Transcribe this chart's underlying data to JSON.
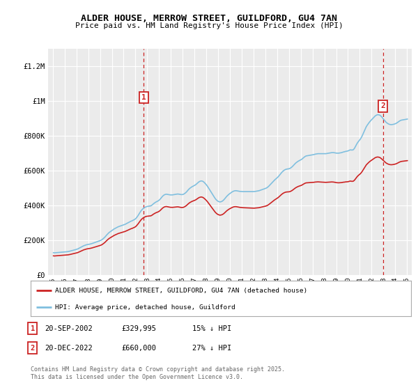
{
  "title": "ALDER HOUSE, MERROW STREET, GUILDFORD, GU4 7AN",
  "subtitle": "Price paid vs. HM Land Registry's House Price Index (HPI)",
  "ylabel_ticks": [
    "£0",
    "£200K",
    "£400K",
    "£600K",
    "£800K",
    "£1M",
    "£1.2M"
  ],
  "ytick_vals": [
    0,
    200000,
    400000,
    600000,
    800000,
    1000000,
    1200000
  ],
  "ylim": [
    0,
    1300000
  ],
  "sale1_price": 329995,
  "sale1_year": 2002.75,
  "sale1_date": "20-SEP-2002",
  "sale1_pricetxt": "£329,995",
  "sale1_label": "15% ↓ HPI",
  "sale2_price": 660000,
  "sale2_year": 2022.917,
  "sale2_date": "20-DEC-2022",
  "sale2_pricetxt": "£660,000",
  "sale2_label": "27% ↓ HPI",
  "legend_line1": "ALDER HOUSE, MERROW STREET, GUILDFORD, GU4 7AN (detached house)",
  "legend_line2": "HPI: Average price, detached house, Guildford",
  "footer": "Contains HM Land Registry data © Crown copyright and database right 2025.\nThis data is licensed under the Open Government Licence v3.0.",
  "hpi_color": "#7fbfdf",
  "price_color": "#cc2222",
  "vline_color": "#cc2222",
  "bg_chart": "#ebebeb",
  "bg_fig": "#ffffff",
  "grid_color": "#ffffff"
}
